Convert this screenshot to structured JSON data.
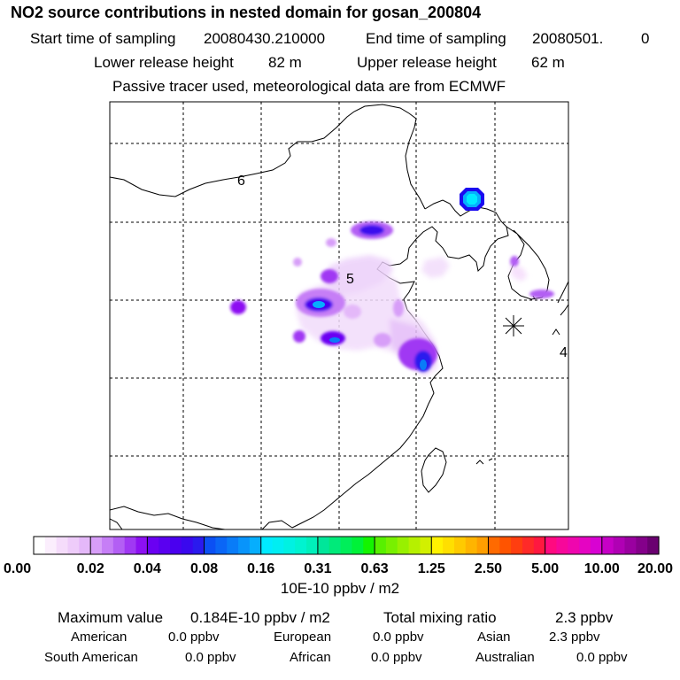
{
  "header": {
    "title": "NO2 source contributions in nested domain for gosan_200804",
    "start_label": "Start time of sampling",
    "start_value": "20080430.210000",
    "end_label": "End time of sampling",
    "end_value": "20080501.",
    "end_value_suffix": "0",
    "lower_label": "Lower release height",
    "lower_value": "82 m",
    "upper_label": "Upper release height",
    "upper_value": "62 m",
    "note": "Passive tracer used, meteorological data are from ECMWF"
  },
  "map": {
    "labels": [
      {
        "name": "region-label-6",
        "text": "6"
      },
      {
        "name": "region-label-5",
        "text": "5"
      },
      {
        "name": "region-label-4",
        "text": "4"
      }
    ],
    "receptor": "gosan-receptor-marker"
  },
  "colorbar": {
    "unit": "10E-10 ppbv / m2",
    "ticks": [
      "0.00",
      "0.02",
      "0.04",
      "0.08",
      "0.16",
      "0.31",
      "0.63",
      "1.25",
      "2.50",
      "5.00",
      "10.00",
      "20.00"
    ],
    "colors": [
      [
        "#ffffff",
        "#fbeefd",
        "#f5dcfb",
        "#eeccfa",
        "#e4b8f9"
      ],
      [
        "#d79ef8",
        "#c67ef6",
        "#b35ff4",
        "#a038f3",
        "#8d10f2"
      ],
      [
        "#6a00f2",
        "#5a00f0",
        "#4a00ef",
        "#3a08ee",
        "#2a1aee"
      ],
      [
        "#0b50f4",
        "#0a66f6",
        "#097cf8",
        "#0894fb",
        "#06aefd"
      ],
      [
        "#00eaff",
        "#00eef2",
        "#00f1e2",
        "#00f3d0",
        "#00f0bb"
      ],
      [
        "#00e69a",
        "#00ea7a",
        "#00ee5a",
        "#00f238",
        "#14f400"
      ],
      [
        "#58f000",
        "#78f000",
        "#98f000",
        "#b6f000",
        "#d2f000"
      ],
      [
        "#fff200",
        "#ffdf00",
        "#ffca00",
        "#ffb400",
        "#ff9e00"
      ],
      [
        "#ff6a00",
        "#ff5400",
        "#ff3e10",
        "#ff2a28",
        "#ff1840"
      ],
      [
        "#ff0a80",
        "#f7089a",
        "#ef06ae",
        "#e504c2",
        "#d802d2"
      ],
      [
        "#c600c6",
        "#b000b4",
        "#9a00a0",
        "#84008a",
        "#6a0070"
      ]
    ]
  },
  "stats": {
    "max_label": "Maximum value",
    "max_value": "0.184E-10 ppbv / m2",
    "total_label": "Total mixing ratio",
    "total_value": "2.3 ppbv",
    "regions": [
      {
        "name": "American",
        "value": "0.0 ppbv"
      },
      {
        "name": "European",
        "value": "0.0 ppbv"
      },
      {
        "name": "Asian",
        "value": "2.3 ppbv"
      },
      {
        "name": "South American",
        "value": "0.0 ppbv"
      },
      {
        "name": "African",
        "value": "0.0 ppbv"
      },
      {
        "name": "Australian",
        "value": "0.0 ppbv"
      }
    ]
  }
}
